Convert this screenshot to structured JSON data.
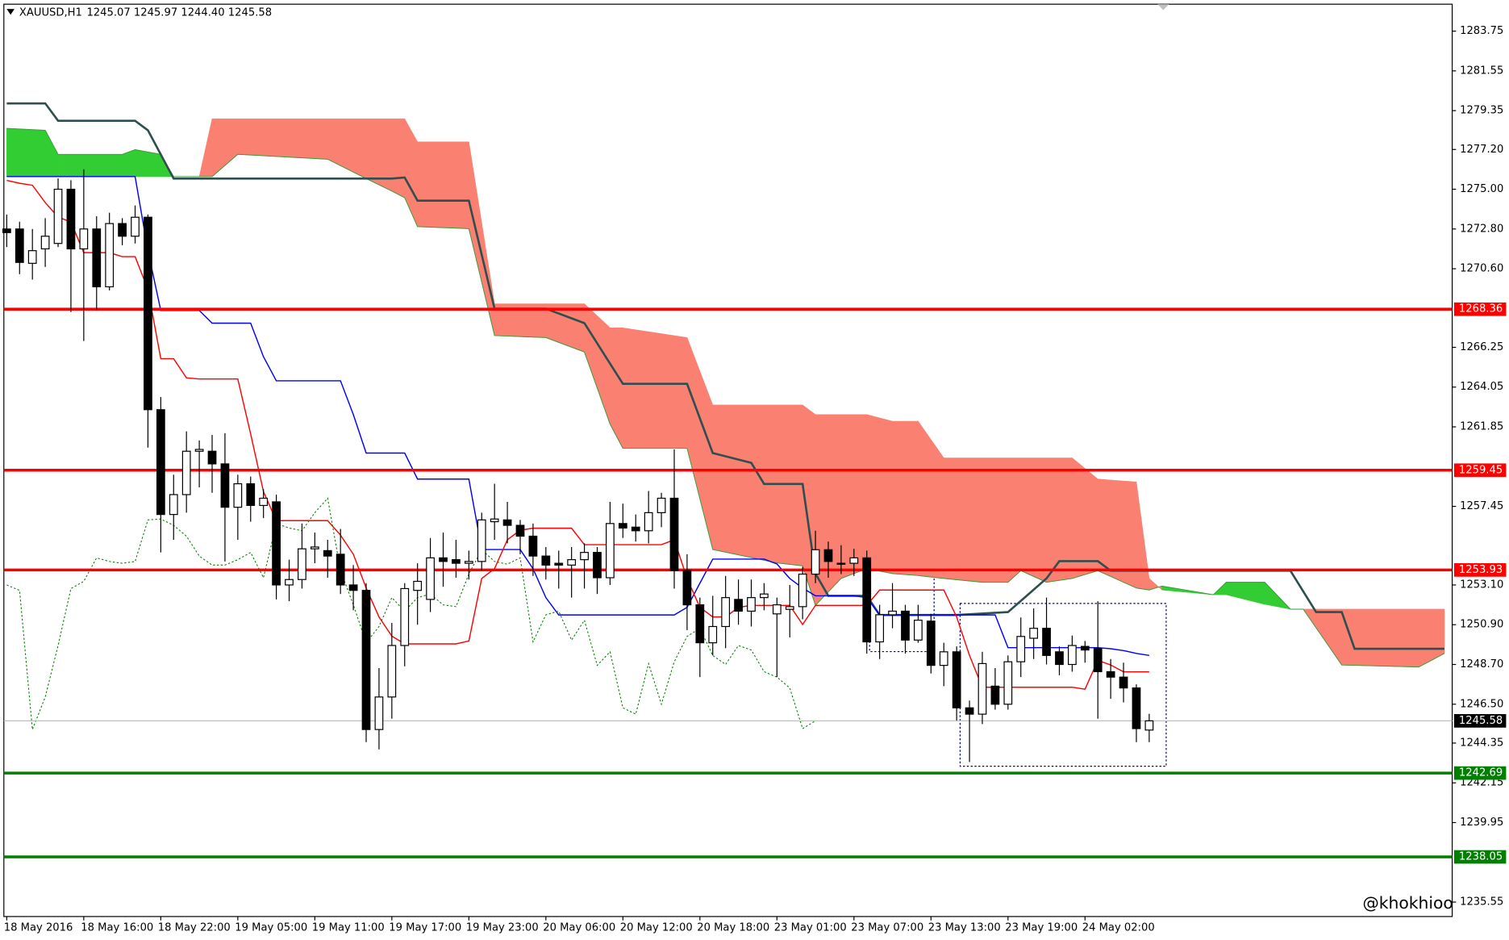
{
  "header": {
    "symbol": "XAUUSD,H1",
    "ohlc": "1245.07 1245.97 1244.40 1245.58"
  },
  "watermark": "@khokhioo",
  "chart_data": {
    "type": "candlestick",
    "categories": [
      "18 May 2016",
      null,
      null,
      null,
      null,
      null,
      "18 May 16:00",
      null,
      null,
      null,
      null,
      null,
      "18 May 22:00",
      null,
      null,
      null,
      null,
      null,
      "19 May 05:00",
      null,
      null,
      null,
      null,
      null,
      "19 May 11:00",
      null,
      null,
      null,
      null,
      null,
      "19 May 17:00",
      null,
      null,
      null,
      null,
      null,
      "19 May 23:00",
      null,
      null,
      null,
      null,
      null,
      "20 May 06:00",
      null,
      null,
      null,
      null,
      null,
      "20 May 12:00",
      null,
      null,
      null,
      null,
      null,
      "20 May 18:00",
      null,
      null,
      null,
      null,
      null,
      "23 May 01:00",
      null,
      null,
      null,
      null,
      null,
      "23 May 07:00",
      null,
      null,
      null,
      null,
      null,
      "23 May 13:00",
      null,
      null,
      null,
      null,
      null,
      "23 May 19:00",
      null,
      null,
      null,
      null,
      null,
      "24 May 02:00",
      null,
      null,
      null,
      null,
      null
    ],
    "open": [
      1272.8,
      1272.8,
      1270.9,
      1271.7,
      1272.0,
      1275.0,
      1271.7,
      1272.8,
      1269.6,
      1273.1,
      1272.4,
      1273.45,
      1262.8,
      1257.0,
      1258.1,
      1260.5,
      1260.5,
      1259.8,
      1257.4,
      1258.7,
      1257.5,
      1257.7,
      1253.1,
      1253.4,
      1255.1,
      1255.0,
      1254.8,
      1253.1,
      1252.8,
      1245.1,
      1246.9,
      1249.75,
      1252.8,
      1252.3,
      1254.6,
      1254.5,
      1254.3,
      1254.4,
      1256.6,
      1256.7,
      1256.4,
      1255.8,
      1254.7,
      1254.3,
      1254.2,
      1254.5,
      1254.9,
      1253.5,
      1256.5,
      1256.3,
      1256.1,
      1257.1,
      1257.9,
      1253.9,
      1252.0,
      1249.9,
      1250.8,
      1252.3,
      1251.65,
      1252.4,
      1251.5,
      1251.75,
      1251.9,
      1253.7,
      1255.05,
      1254.3,
      1254.3,
      1254.6,
      1249.95,
      1251.45,
      1251.65,
      1250.05,
      1251.1,
      1248.65,
      1249.4,
      1246.3,
      1245.95,
      1247.5,
      1246.5,
      1248.85,
      1250.15,
      1250.7,
      1249.4,
      1248.7,
      1249.7,
      1249.6,
      1248.3,
      1248.0,
      1247.4,
      1245.07
    ],
    "high": [
      1273.6,
      1273.2,
      1272.8,
      1273.4,
      1275.6,
      1275.5,
      1276.1,
      1273.5,
      1273.7,
      1273.4,
      1274.1,
      1273.6,
      1263.5,
      1259.2,
      1261.6,
      1261.1,
      1261.4,
      1261.5,
      1259.2,
      1259.1,
      1258.4,
      1258.1,
      1254.5,
      1256.5,
      1256.0,
      1255.6,
      1256.2,
      1254.2,
      1253.2,
      1248.5,
      1251.0,
      1253.2,
      1254.3,
      1255.7,
      1256.0,
      1255.6,
      1255.0,
      1257.1,
      1258.7,
      1257.7,
      1256.7,
      1256.5,
      1255.2,
      1255.0,
      1255.2,
      1255.4,
      1255.2,
      1257.7,
      1257.6,
      1257.0,
      1258.3,
      1258.2,
      1260.6,
      1254.8,
      1252.4,
      1252.5,
      1253.6,
      1253.4,
      1253.4,
      1253.2,
      1252.4,
      1253.1,
      1254.1,
      1256.1,
      1255.5,
      1255.3,
      1255.1,
      1255.0,
      1252.0,
      1253.2,
      1252.0,
      1252.0,
      1251.5,
      1249.9,
      1249.7,
      1246.7,
      1249.4,
      1248.5,
      1249.2,
      1251.3,
      1251.8,
      1252.4,
      1249.7,
      1250.3,
      1250.0,
      1252.2,
      1249.0,
      1248.8,
      1247.6,
      1245.97
    ],
    "low": [
      1271.8,
      1270.3,
      1270.0,
      1270.7,
      1271.8,
      1268.2,
      1266.6,
      1268.3,
      1269.4,
      1271.9,
      1272.0,
      1260.7,
      1254.9,
      1255.6,
      1257.1,
      1258.5,
      1258.2,
      1254.4,
      1255.6,
      1256.6,
      1256.8,
      1252.3,
      1252.2,
      1252.9,
      1254.3,
      1253.5,
      1252.6,
      1251.7,
      1244.4,
      1244.0,
      1245.7,
      1248.6,
      1250.9,
      1251.6,
      1253.0,
      1253.5,
      1253.4,
      1253.9,
      1255.6,
      1255.4,
      1254.8,
      1253.6,
      1253.4,
      1252.9,
      1252.4,
      1252.9,
      1252.6,
      1253.1,
      1255.7,
      1255.5,
      1255.4,
      1256.3,
      1252.9,
      1250.6,
      1248.0,
      1249.2,
      1249.6,
      1250.9,
      1250.8,
      1251.7,
      1248.0,
      1250.2,
      1251.2,
      1253.2,
      1253.5,
      1253.7,
      1253.6,
      1249.3,
      1249.0,
      1250.7,
      1249.3,
      1249.9,
      1248.2,
      1247.5,
      1245.6,
      1243.3,
      1245.4,
      1246.2,
      1246.2,
      1248.0,
      1249.0,
      1248.7,
      1248.1,
      1248.3,
      1248.8,
      1245.7,
      1246.8,
      1246.6,
      1244.4,
      1244.4
    ],
    "close": [
      1272.6,
      1270.95,
      1271.6,
      1272.4,
      1275.0,
      1271.7,
      1272.8,
      1269.6,
      1273.1,
      1272.4,
      1273.45,
      1262.8,
      1257.0,
      1258.1,
      1260.5,
      1260.6,
      1259.8,
      1257.4,
      1258.7,
      1257.5,
      1257.9,
      1253.1,
      1253.4,
      1255.1,
      1255.2,
      1254.7,
      1253.1,
      1252.8,
      1245.1,
      1246.9,
      1249.75,
      1252.9,
      1253.3,
      1254.6,
      1254.4,
      1254.3,
      1254.4,
      1256.7,
      1256.75,
      1256.4,
      1255.8,
      1254.7,
      1254.2,
      1254.2,
      1254.5,
      1254.9,
      1253.5,
      1256.5,
      1256.25,
      1256.1,
      1257.1,
      1257.9,
      1253.9,
      1252.0,
      1249.9,
      1250.8,
      1252.4,
      1251.65,
      1252.4,
      1252.6,
      1252.0,
      1251.9,
      1253.7,
      1255.05,
      1254.4,
      1254.25,
      1254.6,
      1249.95,
      1251.45,
      1251.65,
      1250.05,
      1251.15,
      1248.65,
      1249.4,
      1246.3,
      1245.95,
      1248.75,
      1246.5,
      1248.85,
      1250.25,
      1250.7,
      1249.2,
      1248.7,
      1249.75,
      1249.5,
      1248.3,
      1248.0,
      1247.4,
      1245.15,
      1245.58
    ],
    "up_color": "#ffffff",
    "down_color": "#000000",
    "ylim": [
      1234.75,
      1285.24
    ],
    "yticks": [
      {
        "value": 1283.75,
        "label": "1283.75"
      },
      {
        "value": 1281.55,
        "label": "1281.55"
      },
      {
        "value": 1279.35,
        "label": "1279.35"
      },
      {
        "value": 1277.2,
        "label": "1277.20"
      },
      {
        "value": 1275,
        "label": "1275.00"
      },
      {
        "value": 1272.8,
        "label": "1272.80"
      },
      {
        "value": 1270.6,
        "label": "1270.60"
      },
      {
        "value": 1266.25,
        "label": "1266.25"
      },
      {
        "value": 1264.05,
        "label": "1264.05"
      },
      {
        "value": 1261.85,
        "label": "1261.85"
      },
      {
        "value": 1257.45,
        "label": "1257.45"
      },
      {
        "value": 1253.1,
        "label": "1253.10"
      },
      {
        "value": 1250.9,
        "label": "1250.90"
      },
      {
        "value": 1248.7,
        "label": "1248.70"
      },
      {
        "value": 1246.5,
        "label": "1246.50"
      },
      {
        "value": 1244.35,
        "label": "1244.35"
      },
      {
        "value": 1242.15,
        "label": "1242.15"
      },
      {
        "value": 1239.95,
        "label": "1239.95"
      },
      {
        "value": 1235.55,
        "label": "1235.55"
      }
    ],
    "series": [
      {
        "color": "#0000ff",
        "values": [
          1275.7,
          1275.7,
          1275.7,
          1275.7,
          1275.7,
          1275.7,
          1275.7,
          1275.7,
          1275.7,
          1275.7,
          1275.7,
          1271.59,
          1268.29,
          1268.29,
          1268.29,
          1268.29,
          1267.59,
          1267.59,
          1267.59,
          1267.59,
          1265.73,
          1264.4,
          1264.4,
          1264.4,
          1264.4,
          1264.4,
          1264.4,
          1262.53,
          1260.4,
          1260.4,
          1260.4,
          1260.4,
          1258.96,
          1258.96,
          1258.96,
          1258.96,
          1258.96,
          1255.06,
          1255.06,
          1255.06,
          1255.06,
          1254.0,
          1252.4,
          1251.44,
          1251.44,
          1251.44,
          1251.44,
          1251.44,
          1251.44,
          1251.44,
          1251.44,
          1251.44,
          1251.44,
          1251.86,
          1253.2,
          1254.53,
          1254.53,
          1254.53,
          1254.53,
          1254.53,
          1254.26,
          1253.46,
          1252.93,
          1252.5,
          1252.5,
          1252.5,
          1252.5,
          1252.4,
          1251.44,
          1251.44,
          1251.44,
          1251.44,
          1251.44,
          1251.44,
          1251.44,
          1251.44,
          1251.44,
          1251.44,
          1249.63,
          1249.63,
          1249.63,
          1249.63,
          1249.63,
          1249.63,
          1249.63,
          1249.63,
          1249.57,
          1249.47,
          1249.31,
          1249.2
        ]
      },
      {
        "color": "#ff0000",
        "values": [
          1275.49,
          1275.33,
          1275.22,
          1274.26,
          1273.46,
          1273.19,
          1271.49,
          1271.49,
          1271.49,
          1271.27,
          1271.27,
          1269.46,
          1265.62,
          1265.62,
          1264.56,
          1264.5,
          1264.5,
          1264.5,
          1264.5,
          1261.46,
          1258.26,
          1256.66,
          1256.66,
          1256.66,
          1256.66,
          1256.66,
          1255.86,
          1254.8,
          1252.93,
          1251.33,
          1250.27,
          1249.84,
          1249.84,
          1249.84,
          1249.84,
          1249.84,
          1250.0,
          1253.46,
          1254.0,
          1255.6,
          1256.13,
          1256.24,
          1256.24,
          1256.24,
          1256.24,
          1255.33,
          1255.33,
          1255.33,
          1255.33,
          1255.33,
          1255.33,
          1255.33,
          1255.6,
          1253.46,
          1251.86,
          1251.33,
          1251.33,
          1251.86,
          1251.97,
          1251.97,
          1251.97,
          1251.97,
          1250.91,
          1251.97,
          1251.97,
          1251.97,
          1251.97,
          1251.97,
          1252.82,
          1252.82,
          1252.82,
          1252.82,
          1252.82,
          1252.82,
          1251.33,
          1249.2,
          1247.44,
          1247.44,
          1247.44,
          1247.44,
          1247.44,
          1247.44,
          1247.44,
          1247.44,
          1247.33,
          1248.93,
          1248.67,
          1248.29,
          1248.29,
          1248.29
        ]
      }
    ],
    "chikou": {
      "color": "#008000",
      "values": [
        1253.1,
        1252.8,
        1245.1,
        1246.9,
        1249.75,
        1252.9,
        1253.3,
        1254.6,
        1254.4,
        1254.3,
        1254.4,
        1256.7,
        1256.75,
        1256.4,
        1255.8,
        1254.7,
        1254.2,
        1254.2,
        1254.5,
        1254.9,
        1253.5,
        1256.5,
        1256.25,
        1256.1,
        1257.1,
        1257.9,
        1253.9,
        1252.0,
        1249.9,
        1250.8,
        1252.4,
        1251.65,
        1252.4,
        1252.6,
        1252.0,
        1251.9,
        1253.7,
        1255.05,
        1254.4,
        1254.25,
        1254.6,
        1249.95,
        1251.45,
        1251.65,
        1250.05,
        1251.15,
        1248.65,
        1249.4,
        1246.3,
        1245.95,
        1248.75,
        1246.5,
        1248.85,
        1250.25,
        1250.7,
        1249.2,
        1248.7,
        1249.75,
        1249.5,
        1248.3,
        1248.0,
        1247.4,
        1245.15,
        1245.58
      ]
    },
    "cloud": {
      "bull_color": "#32cd32",
      "bear_color": "#fa8072",
      "x": [
        0,
        3,
        4,
        9,
        10,
        12,
        13,
        15,
        16,
        18,
        25,
        28,
        30,
        31,
        32,
        36,
        38,
        42,
        45,
        47,
        48,
        53,
        55,
        60,
        62,
        63,
        65,
        67,
        69,
        71,
        73,
        76,
        78,
        79,
        81,
        83,
        85,
        88,
        89,
        90,
        94,
        95,
        98,
        100,
        101,
        104,
        110,
        112
      ],
      "span_a": [
        1278.37,
        1278.26,
        1276.93,
        1276.93,
        1277.19,
        1276.93,
        1275.7,
        1275.7,
        1275.7,
        1276.93,
        1276.66,
        1275.59,
        1274.9,
        1274.53,
        1272.93,
        1272.82,
        1266.9,
        1266.79,
        1265.99,
        1262.0,
        1260.66,
        1260.66,
        1255.06,
        1254.32,
        1254.16,
        1251.97,
        1253.46,
        1254.0,
        1253.73,
        1253.62,
        1253.46,
        1253.25,
        1253.25,
        1253.89,
        1253.25,
        1253.46,
        1253.89,
        1252.93,
        1252.82,
        1253.04,
        1252.56,
        1253.25,
        1253.25,
        1251.76,
        1251.76,
        1248.67,
        1248.56,
        1249.31
      ],
      "span_b": [
        1275.7,
        1275.7,
        1275.7,
        1275.7,
        1275.7,
        1275.7,
        1275.7,
        1275.7,
        1278.9,
        1278.9,
        1278.9,
        1278.9,
        1278.9,
        1278.9,
        1277.62,
        1277.62,
        1268.66,
        1268.66,
        1268.66,
        1267.33,
        1267.33,
        1266.79,
        1263.06,
        1263.06,
        1263.06,
        1262.53,
        1262.53,
        1262.53,
        1262.16,
        1262.16,
        1260.13,
        1260.13,
        1260.13,
        1260.13,
        1260.13,
        1260.13,
        1258.96,
        1258.8,
        1253.46,
        1252.82,
        1252.56,
        1252.56,
        1252.03,
        1251.76,
        1251.76,
        1251.76,
        1251.76,
        1251.76
      ]
    },
    "dark_line": {
      "color": "#2f4f4f",
      "x": [
        0,
        3,
        4,
        10,
        11,
        13,
        30,
        31,
        32,
        36,
        38,
        42,
        45,
        48,
        53,
        55,
        58,
        59,
        62,
        63,
        64,
        67,
        68,
        74,
        78,
        81,
        82,
        85,
        86,
        100,
        102,
        104,
        105,
        112
      ],
      "values": [
        1279.75,
        1279.75,
        1278.79,
        1278.79,
        1278.26,
        1275.59,
        1275.59,
        1275.65,
        1274.37,
        1274.37,
        1268.39,
        1268.39,
        1267.59,
        1264.23,
        1264.23,
        1260.4,
        1259.86,
        1258.69,
        1258.69,
        1253.73,
        1252.5,
        1252.5,
        1251.44,
        1251.44,
        1251.6,
        1253.46,
        1254.42,
        1254.42,
        1253.89,
        1253.89,
        1251.6,
        1251.6,
        1249.57,
        1249.57
      ]
    },
    "levels": [
      {
        "value": 1268.36,
        "color": "#ff0000"
      },
      {
        "value": 1259.45,
        "color": "#ff0000"
      },
      {
        "value": 1253.93,
        "color": "#ff0000"
      },
      {
        "value": 1242.69,
        "color": "#008000"
      },
      {
        "value": 1238.05,
        "color": "#008000"
      }
    ],
    "last_price": 1245.58
  }
}
